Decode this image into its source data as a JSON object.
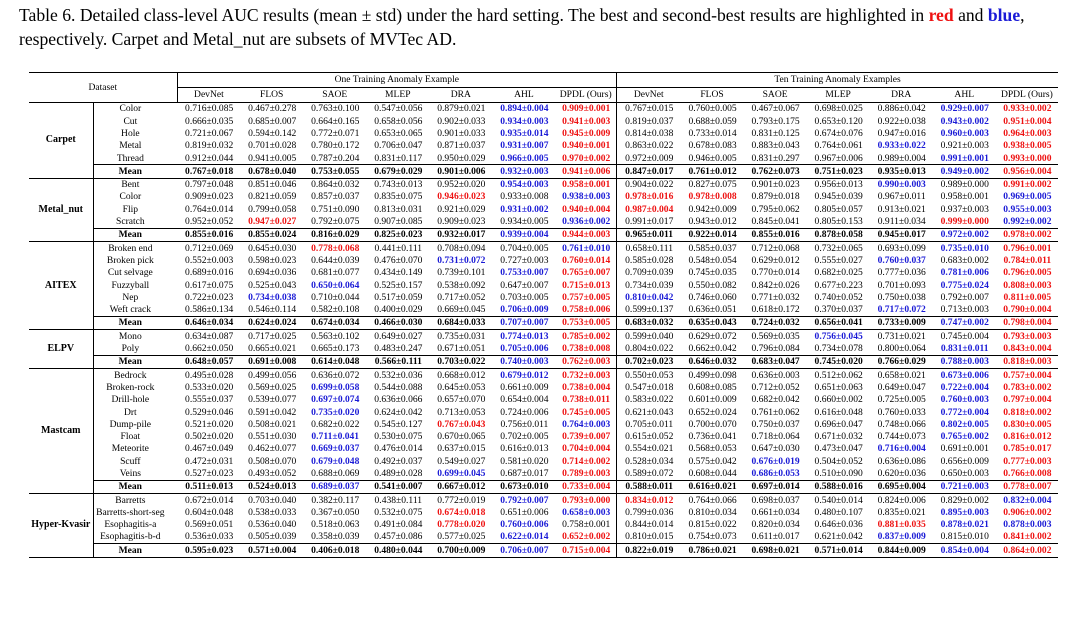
{
  "caption": {
    "prefix": "Table 6. Detailed class-level AUC results (mean ± std) under the hard setting. The best and second-best results are highlighted in",
    "red_word": "red",
    "and_word": "and",
    "blue_word": "blue",
    "suffix": ", respectively. Carpet and Metal_nut are subsets of MVTec AD."
  },
  "header": {
    "dataset": "Dataset",
    "group_one": "One Training Anomaly Example",
    "group_ten": "Ten Training Anomaly Examples",
    "methods": [
      "DevNet",
      "FLOS",
      "SAOE",
      "MLEP",
      "DRA",
      "AHL",
      "DPDL (Ours)"
    ]
  },
  "colors": {
    "best": "#ee1111",
    "second": "#1a1ad6"
  },
  "groups": [
    {
      "name": "Carpet",
      "rows": [
        {
          "label": "Color",
          "cells": [
            "0.716±0.085",
            "0.467±0.278",
            "0.763±0.100",
            "0.547±0.056",
            "0.879±0.021",
            "b0.894±0.004",
            "r0.909±0.001",
            "0.767±0.015",
            "0.760±0.005",
            "0.467±0.067",
            "0.698±0.025",
            "0.886±0.042",
            "b0.929±0.007",
            "r0.933±0.002"
          ]
        },
        {
          "label": "Cut",
          "cells": [
            "0.666±0.035",
            "0.685±0.007",
            "0.664±0.165",
            "0.658±0.056",
            "0.902±0.033",
            "b0.934±0.003",
            "r0.941±0.003",
            "0.819±0.037",
            "0.688±0.059",
            "0.793±0.175",
            "0.653±0.120",
            "0.922±0.038",
            "b0.943±0.002",
            "r0.951±0.004"
          ]
        },
        {
          "label": "Hole",
          "cells": [
            "0.721±0.067",
            "0.594±0.142",
            "0.772±0.071",
            "0.653±0.065",
            "0.901±0.033",
            "b0.935±0.014",
            "r0.945±0.009",
            "0.814±0.038",
            "0.733±0.014",
            "0.831±0.125",
            "0.674±0.076",
            "0.947±0.016",
            "b0.960±0.003",
            "r0.964±0.003"
          ]
        },
        {
          "label": "Metal",
          "cells": [
            "0.819±0.032",
            "0.701±0.028",
            "0.780±0.172",
            "0.706±0.047",
            "0.871±0.037",
            "b0.931±0.007",
            "r0.940±0.001",
            "0.863±0.022",
            "0.678±0.083",
            "0.883±0.043",
            "0.764±0.061",
            "b0.933±0.022",
            "0.921±0.003",
            "r0.938±0.005"
          ]
        },
        {
          "label": "Thread",
          "cells": [
            "0.912±0.044",
            "0.941±0.005",
            "0.787±0.204",
            "0.831±0.117",
            "0.950±0.029",
            "b0.966±0.005",
            "r0.970±0.002",
            "0.972±0.009",
            "0.946±0.005",
            "0.831±0.297",
            "0.967±0.006",
            "0.989±0.004",
            "b0.991±0.001",
            "r0.993±0.000"
          ]
        },
        {
          "label": "Mean",
          "mean": true,
          "cells": [
            "0.767±0.018",
            "0.678±0.040",
            "0.753±0.055",
            "0.679±0.029",
            "0.901±0.006",
            "b0.932±0.003",
            "r0.941±0.006",
            "0.847±0.017",
            "0.761±0.012",
            "0.762±0.073",
            "0.751±0.023",
            "0.935±0.013",
            "b0.949±0.002",
            "r0.956±0.004"
          ]
        }
      ]
    },
    {
      "name": "Metal_nut",
      "rows": [
        {
          "label": "Bent",
          "cells": [
            "0.797±0.048",
            "0.851±0.046",
            "0.864±0.032",
            "0.743±0.013",
            "0.952±0.020",
            "b0.954±0.003",
            "r0.958±0.001",
            "0.904±0.022",
            "0.827±0.075",
            "0.901±0.023",
            "0.956±0.013",
            "b0.990±0.003",
            "0.989±0.000",
            "r0.991±0.002"
          ]
        },
        {
          "label": "Color",
          "cells": [
            "0.909±0.023",
            "0.821±0.059",
            "0.857±0.037",
            "0.835±0.075",
            "r0.946±0.023",
            "0.933±0.008",
            "b0.938±0.003",
            "r0.978±0.016",
            "r0.978±0.008",
            "0.879±0.018",
            "0.945±0.039",
            "0.967±0.011",
            "0.958±0.001",
            "b0.969±0.005"
          ]
        },
        {
          "label": "Flip",
          "cells": [
            "0.764±0.014",
            "0.799±0.058",
            "0.751±0.090",
            "0.813±0.031",
            "0.921±0.029",
            "b0.931±0.002",
            "r0.940±0.004",
            "r0.987±0.004",
            "0.942±0.009",
            "0.795±0.062",
            "0.805±0.057",
            "0.913±0.021",
            "0.937±0.003",
            "b0.955±0.003"
          ]
        },
        {
          "label": "Scratch",
          "cells": [
            "0.952±0.052",
            "r0.947±0.027",
            "0.792±0.075",
            "0.907±0.085",
            "0.909±0.023",
            "0.934±0.005",
            "b0.936±0.002",
            "0.991±0.017",
            "0.943±0.012",
            "0.845±0.041",
            "0.805±0.153",
            "0.911±0.034",
            "r0.999±0.000",
            "b0.992±0.002"
          ]
        },
        {
          "label": "Mean",
          "mean": true,
          "cells": [
            "0.855±0.016",
            "0.855±0.024",
            "0.816±0.029",
            "0.825±0.023",
            "0.932±0.017",
            "b0.939±0.004",
            "r0.944±0.003",
            "0.965±0.011",
            "0.922±0.014",
            "0.855±0.016",
            "0.878±0.058",
            "0.945±0.017",
            "b0.972±0.002",
            "r0.978±0.002"
          ]
        }
      ]
    },
    {
      "name": "AITEX",
      "rows": [
        {
          "label": "Broken end",
          "cells": [
            "0.712±0.069",
            "0.645±0.030",
            "r0.778±0.068",
            "0.441±0.111",
            "0.708±0.094",
            "0.704±0.005",
            "b0.761±0.010",
            "0.658±0.111",
            "0.585±0.037",
            "0.712±0.068",
            "0.732±0.065",
            "0.693±0.099",
            "b0.735±0.010",
            "r0.796±0.001"
          ]
        },
        {
          "label": "Broken pick",
          "cells": [
            "0.552±0.003",
            "0.598±0.023",
            "0.644±0.039",
            "0.476±0.070",
            "b0.731±0.072",
            "0.727±0.003",
            "r0.760±0.014",
            "0.585±0.028",
            "0.548±0.054",
            "0.629±0.012",
            "0.555±0.027",
            "b0.760±0.037",
            "0.683±0.002",
            "r0.784±0.011"
          ]
        },
        {
          "label": "Cut selvage",
          "cells": [
            "0.689±0.016",
            "0.694±0.036",
            "0.681±0.077",
            "0.434±0.149",
            "0.739±0.101",
            "b0.753±0.007",
            "r0.765±0.007",
            "0.709±0.039",
            "0.745±0.035",
            "0.770±0.014",
            "0.682±0.025",
            "0.777±0.036",
            "b0.781±0.006",
            "r0.796±0.005"
          ]
        },
        {
          "label": "Fuzzyball",
          "cells": [
            "0.617±0.075",
            "0.525±0.043",
            "b0.650±0.064",
            "0.525±0.157",
            "0.538±0.092",
            "0.647±0.007",
            "r0.715±0.013",
            "0.734±0.039",
            "0.550±0.082",
            "0.842±0.026",
            "0.677±0.223",
            "0.701±0.093",
            "b0.775±0.024",
            "r0.808±0.003"
          ]
        },
        {
          "label": "Nep",
          "cells": [
            "0.722±0.023",
            "b0.734±0.038",
            "0.710±0.044",
            "0.517±0.059",
            "0.717±0.052",
            "0.703±0.005",
            "r0.757±0.005",
            "b0.810±0.042",
            "0.746±0.060",
            "0.771±0.032",
            "0.740±0.052",
            "0.750±0.038",
            "0.792±0.007",
            "r0.811±0.005"
          ]
        },
        {
          "label": "Weft crack",
          "cells": [
            "0.586±0.134",
            "0.546±0.114",
            "0.582±0.108",
            "0.400±0.029",
            "0.669±0.045",
            "b0.706±0.009",
            "r0.758±0.006",
            "0.599±0.137",
            "0.636±0.051",
            "0.618±0.172",
            "0.370±0.037",
            "b0.717±0.072",
            "0.713±0.003",
            "r0.790±0.004"
          ]
        },
        {
          "label": "Mean",
          "mean": true,
          "cells": [
            "0.646±0.034",
            "0.624±0.024",
            "0.674±0.034",
            "0.466±0.030",
            "0.684±0.033",
            "b0.707±0.007",
            "r0.753±0.005",
            "0.683±0.032",
            "0.635±0.043",
            "0.724±0.032",
            "0.656±0.041",
            "0.733±0.009",
            "b0.747±0.002",
            "r0.798±0.004"
          ]
        }
      ]
    },
    {
      "name": "ELPV",
      "rows": [
        {
          "label": "Mono",
          "cells": [
            "0.634±0.087",
            "0.717±0.025",
            "0.563±0.102",
            "0.649±0.027",
            "0.735±0.031",
            "b0.774±0.013",
            "r0.785±0.002",
            "0.599±0.040",
            "0.629±0.072",
            "0.569±0.035",
            "b0.756±0.045",
            "0.731±0.021",
            "0.745±0.004",
            "r0.793±0.003"
          ]
        },
        {
          "label": "Poly",
          "cells": [
            "0.662±0.050",
            "0.665±0.021",
            "0.665±0.173",
            "0.483±0.247",
            "0.671±0.051",
            "b0.705±0.006",
            "r0.738±0.008",
            "0.804±0.022",
            "0.662±0.042",
            "0.796±0.084",
            "0.734±0.078",
            "0.800±0.064",
            "b0.831±0.011",
            "r0.843±0.004"
          ]
        },
        {
          "label": "Mean",
          "mean": true,
          "cells": [
            "0.648±0.057",
            "0.691±0.008",
            "0.614±0.048",
            "0.566±0.111",
            "0.703±0.022",
            "b0.740±0.003",
            "r0.762±0.003",
            "0.702±0.023",
            "0.646±0.032",
            "0.683±0.047",
            "0.745±0.020",
            "0.766±0.029",
            "b0.788±0.003",
            "r0.818±0.003"
          ]
        }
      ]
    },
    {
      "name": "Mastcam",
      "rows": [
        {
          "label": "Bedrock",
          "cells": [
            "0.495±0.028",
            "0.499±0.056",
            "0.636±0.072",
            "0.532±0.036",
            "0.668±0.012",
            "b0.679±0.012",
            "r0.732±0.003",
            "0.550±0.053",
            "0.499±0.098",
            "0.636±0.003",
            "0.512±0.062",
            "0.658±0.021",
            "b0.673±0.006",
            "r0.757±0.004"
          ]
        },
        {
          "label": "Broken-rock",
          "cells": [
            "0.533±0.020",
            "0.569±0.025",
            "b0.699±0.058",
            "0.544±0.088",
            "0.645±0.053",
            "0.661±0.009",
            "r0.738±0.004",
            "0.547±0.018",
            "0.608±0.085",
            "0.712±0.052",
            "0.651±0.063",
            "0.649±0.047",
            "b0.722±0.004",
            "r0.783±0.002"
          ]
        },
        {
          "label": "Drill-hole",
          "cells": [
            "0.555±0.037",
            "0.539±0.077",
            "b0.697±0.074",
            "0.636±0.066",
            "0.657±0.070",
            "0.654±0.004",
            "r0.738±0.011",
            "0.583±0.022",
            "0.601±0.009",
            "0.682±0.042",
            "0.660±0.002",
            "0.725±0.005",
            "b0.760±0.003",
            "r0.797±0.004"
          ]
        },
        {
          "label": "Drt",
          "cells": [
            "0.529±0.046",
            "0.591±0.042",
            "b0.735±0.020",
            "0.624±0.042",
            "0.713±0.053",
            "0.724±0.006",
            "r0.745±0.005",
            "0.621±0.043",
            "0.652±0.024",
            "0.761±0.062",
            "0.616±0.048",
            "0.760±0.033",
            "b0.772±0.004",
            "r0.818±0.002"
          ]
        },
        {
          "label": "Dump-pile",
          "cells": [
            "0.521±0.020",
            "0.508±0.021",
            "0.682±0.022",
            "0.545±0.127",
            "r0.767±0.043",
            "0.756±0.011",
            "b0.764±0.003",
            "0.705±0.011",
            "0.700±0.070",
            "0.750±0.037",
            "0.696±0.047",
            "0.748±0.066",
            "b0.802±0.005",
            "r0.830±0.005"
          ]
        },
        {
          "label": "Float",
          "cells": [
            "0.502±0.020",
            "0.551±0.030",
            "b0.711±0.041",
            "0.530±0.075",
            "0.670±0.065",
            "0.702±0.005",
            "r0.739±0.007",
            "0.615±0.052",
            "0.736±0.041",
            "0.718±0.064",
            "0.671±0.032",
            "0.744±0.073",
            "b0.765±0.002",
            "r0.816±0.012"
          ]
        },
        {
          "label": "Meteorite",
          "cells": [
            "0.467±0.049",
            "0.462±0.077",
            "b0.669±0.037",
            "0.476±0.014",
            "0.637±0.015",
            "0.616±0.013",
            "r0.704±0.004",
            "0.554±0.021",
            "0.568±0.053",
            "0.647±0.030",
            "0.473±0.047",
            "b0.716±0.004",
            "0.691±0.001",
            "r0.785±0.017"
          ]
        },
        {
          "label": "Scuff",
          "cells": [
            "0.472±0.031",
            "0.508±0.070",
            "b0.679±0.048",
            "0.492±0.037",
            "0.549±0.027",
            "0.581±0.020",
            "r0.714±0.002",
            "0.528±0.034",
            "0.575±0.042",
            "b0.676±0.019",
            "0.504±0.052",
            "0.636±0.086",
            "0.656±0.009",
            "r0.777±0.003"
          ]
        },
        {
          "label": "Veins",
          "cells": [
            "0.527±0.023",
            "0.493±0.052",
            "0.688±0.069",
            "0.489±0.028",
            "b0.699±0.045",
            "0.687±0.017",
            "r0.789±0.003",
            "0.589±0.072",
            "0.608±0.044",
            "b0.686±0.053",
            "0.510±0.090",
            "0.620±0.036",
            "0.650±0.003",
            "r0.766±0.008"
          ]
        },
        {
          "label": "Mean",
          "mean": true,
          "cells": [
            "0.511±0.013",
            "0.524±0.013",
            "b0.689±0.037",
            "0.541±0.007",
            "0.667±0.012",
            "0.673±0.010",
            "r0.733±0.004",
            "0.588±0.011",
            "0.616±0.021",
            "0.697±0.014",
            "0.588±0.016",
            "0.695±0.004",
            "b0.721±0.003",
            "r0.778±0.007"
          ]
        }
      ]
    },
    {
      "name": "Hyper-Kvasir",
      "rows": [
        {
          "label": "Barretts",
          "cells": [
            "0.672±0.014",
            "0.703±0.040",
            "0.382±0.117",
            "0.438±0.111",
            "0.772±0.019",
            "b0.792±0.007",
            "r0.793±0.000",
            "r0.834±0.012",
            "0.764±0.066",
            "0.698±0.037",
            "0.540±0.014",
            "0.824±0.006",
            "0.829±0.002",
            "b0.832±0.004"
          ]
        },
        {
          "label": "Barretts-short-seg",
          "cells": [
            "0.604±0.048",
            "0.538±0.033",
            "0.367±0.050",
            "0.532±0.075",
            "r0.674±0.018",
            "0.651±0.006",
            "b0.658±0.003",
            "0.799±0.036",
            "0.810±0.034",
            "0.661±0.034",
            "0.480±0.107",
            "0.835±0.021",
            "b0.895±0.003",
            "r0.906±0.002"
          ]
        },
        {
          "label": "Esophagitis-a",
          "cells": [
            "0.569±0.051",
            "0.536±0.040",
            "0.518±0.063",
            "0.491±0.084",
            "r0.778±0.020",
            "b0.760±0.006",
            "0.758±0.001",
            "0.844±0.014",
            "0.815±0.022",
            "0.820±0.034",
            "0.646±0.036",
            "r0.881±0.035",
            "b0.878±0.021",
            "b0.878±0.003"
          ]
        },
        {
          "label": "Esophagitis-b-d",
          "cells": [
            "0.536±0.033",
            "0.505±0.039",
            "0.358±0.039",
            "0.457±0.086",
            "0.577±0.025",
            "b0.622±0.014",
            "r0.652±0.002",
            "0.810±0.015",
            "0.754±0.073",
            "0.611±0.017",
            "0.621±0.042",
            "b0.837±0.009",
            "0.815±0.010",
            "r0.841±0.002"
          ]
        },
        {
          "label": "Mean",
          "mean": true,
          "cells": [
            "0.595±0.023",
            "0.571±0.004",
            "0.406±0.018",
            "0.480±0.044",
            "0.700±0.009",
            "b0.706±0.007",
            "r0.715±0.004",
            "0.822±0.019",
            "0.786±0.021",
            "0.698±0.021",
            "0.571±0.014",
            "0.844±0.009",
            "b0.854±0.004",
            "r0.864±0.002"
          ]
        }
      ]
    }
  ]
}
